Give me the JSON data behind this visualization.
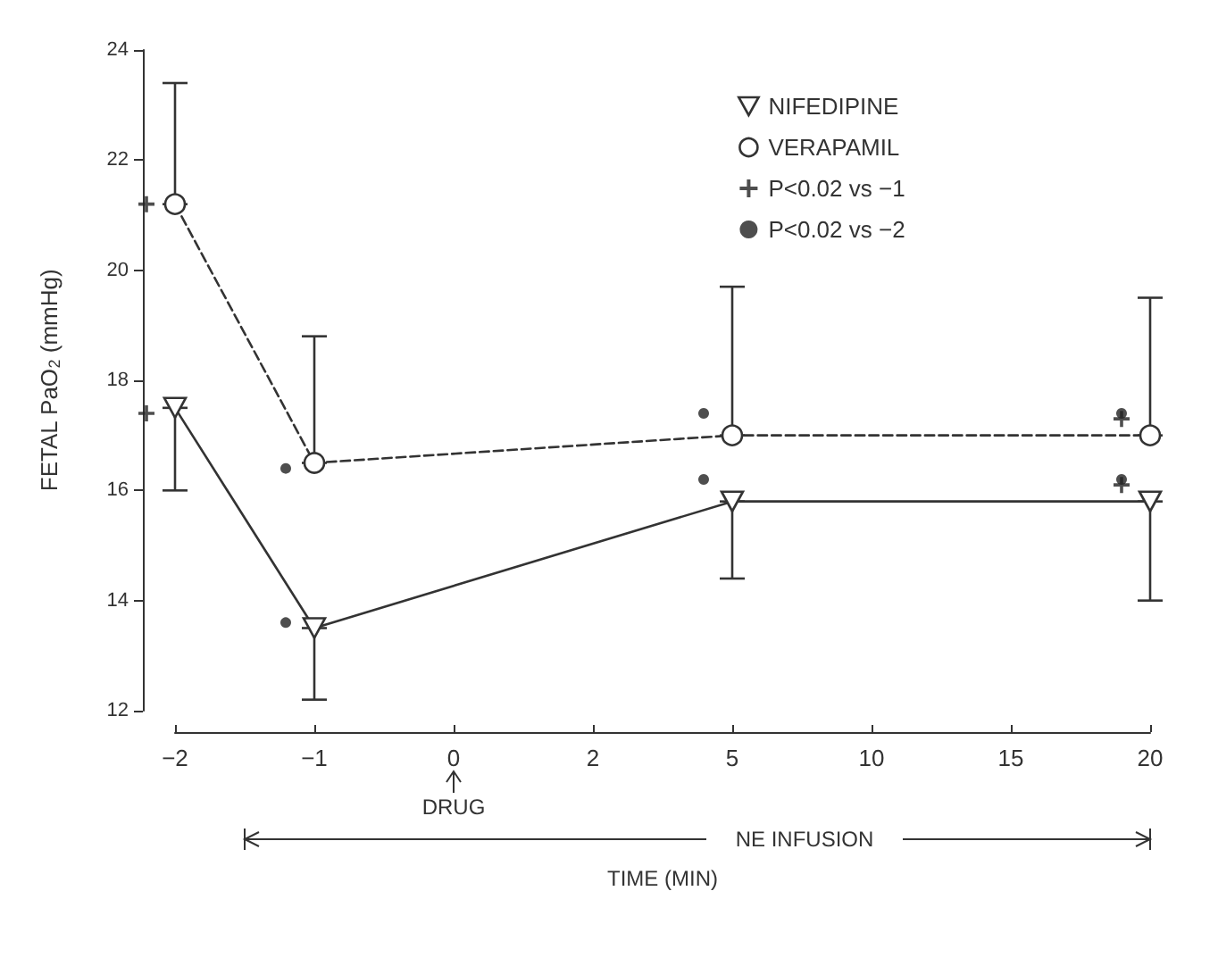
{
  "chart_data": {
    "type": "line",
    "xlabel": "TIME (MIN)",
    "ylabel": "FETAL PaO$_{2}$ (mmHg)",
    "categories": [
      "−2",
      "−1",
      "0",
      "2",
      "5",
      "10",
      "15",
      "20"
    ],
    "ylim": [
      12,
      24
    ],
    "yticks": [
      12,
      14,
      16,
      18,
      20,
      22,
      24
    ],
    "grid": false,
    "legend": "top right",
    "series": [
      {
        "name": "NIFEDIPINE",
        "color": "#333333",
        "marker": "triangle",
        "line_style": "solid",
        "values": [
          17.5,
          13.5,
          null,
          null,
          15.8,
          null,
          null,
          15.8
        ],
        "errors": [
          [
            16.0,
            17.5
          ],
          [
            12.2,
            13.5
          ],
          null,
          null,
          [
            14.4,
            15.8
          ],
          null,
          null,
          [
            14.0,
            15.8
          ]
        ]
      },
      {
        "name": "VERAPAMIL",
        "color": "#333333",
        "marker": "circle",
        "line_style": "dashed",
        "values": [
          21.2,
          16.5,
          null,
          null,
          17.0,
          null,
          null,
          17.0
        ],
        "errors": [
          [
            21.2,
            23.4
          ],
          [
            16.5,
            18.8
          ],
          null,
          null,
          [
            17.0,
            19.7
          ],
          null,
          null,
          [
            17.0,
            19.5
          ]
        ]
      },
      {
        "name": "P<0.02 vs −1",
        "type": "scatter",
        "color": "#222222",
        "marker": "cross",
        "x": [
          "−2",
          "−2",
          "20",
          "20"
        ],
        "values": [
          21.2,
          17.4,
          17.3,
          16.1
        ]
      },
      {
        "name": "P<0.02 vs −2",
        "type": "scatter",
        "color": "#222222",
        "marker": "circle",
        "x": [
          "−1",
          "−1",
          "5",
          "5",
          "20",
          "20"
        ],
        "values": [
          16.4,
          13.6,
          17.4,
          16.2,
          17.4,
          16.2
        ]
      }
    ],
    "annotations": [
      "DRUG",
      "NE INFUSION"
    ]
  }
}
